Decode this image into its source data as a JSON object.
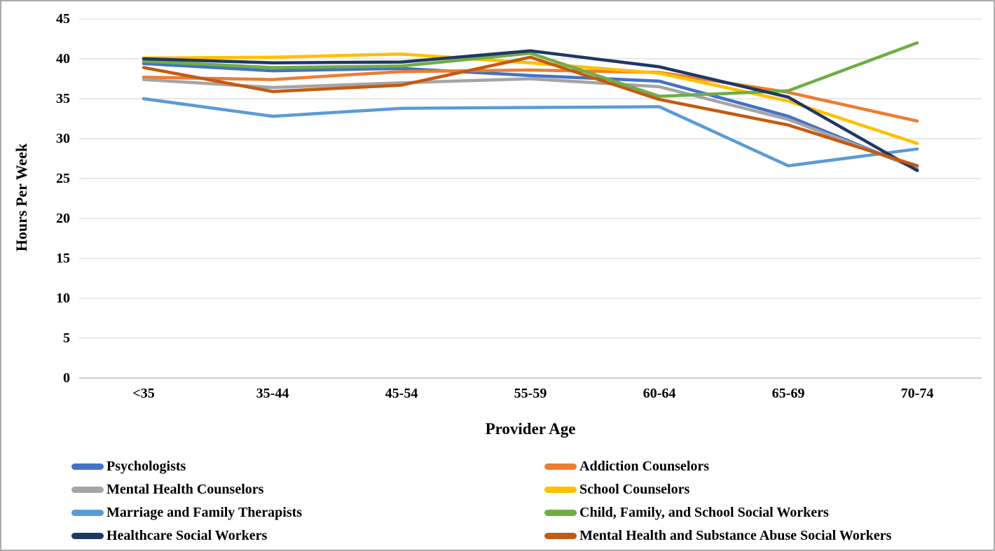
{
  "chart_data": {
    "type": "line",
    "title": "",
    "xlabel": "Provider Age",
    "ylabel": "Hours Per Week",
    "categories": [
      "<35",
      "35-44",
      "45-54",
      "55-59",
      "60-64",
      "65-69",
      "70-74"
    ],
    "ylim": [
      0,
      45
    ],
    "yticks": [
      0,
      5,
      10,
      15,
      20,
      25,
      30,
      35,
      40,
      45
    ],
    "grid": "horizontal",
    "legend_position": "bottom",
    "gridline_color": "#d9d9d9",
    "axis_line_color": "#bfbfbf",
    "series": [
      {
        "name": "Psychologists",
        "color": "#4472C4",
        "values": [
          39.4,
          38.5,
          38.8,
          37.9,
          37.2,
          32.8,
          26.2
        ]
      },
      {
        "name": "Addiction Counselors",
        "color": "#ED7D31",
        "values": [
          37.7,
          37.4,
          38.4,
          38.6,
          38.3,
          35.8,
          32.2
        ]
      },
      {
        "name": "Mental Health Counselors",
        "color": "#A5A5A5",
        "values": [
          37.4,
          36.4,
          37.0,
          37.5,
          36.5,
          32.4,
          26.3
        ]
      },
      {
        "name": "School Counselors",
        "color": "#FFC000",
        "values": [
          40.1,
          40.2,
          40.6,
          39.5,
          38.2,
          34.7,
          29.4
        ]
      },
      {
        "name": "Marriage and Family Therapists",
        "color": "#5B9BD5",
        "values": [
          35.0,
          32.8,
          33.8,
          33.9,
          34.0,
          26.6,
          28.7
        ]
      },
      {
        "name": "Child, Family, and School Social Workers",
        "color": "#70AD47",
        "values": [
          39.7,
          38.9,
          39.1,
          40.7,
          35.3,
          36.0,
          42.0
        ]
      },
      {
        "name": "Healthcare Social Workers",
        "color": "#1F3864",
        "values": [
          40.0,
          39.5,
          39.6,
          41.0,
          39.0,
          35.2,
          26.0
        ]
      },
      {
        "name": "Mental Health and Substance Abuse Social Workers",
        "color": "#C55A11",
        "values": [
          38.9,
          35.9,
          36.7,
          40.2,
          34.9,
          31.7,
          26.6
        ]
      }
    ],
    "legend_columns": [
      [
        "Psychologists",
        "Mental Health Counselors",
        "Marriage and Family Therapists",
        "Healthcare Social Workers"
      ],
      [
        "Addiction Counselors",
        "School Counselors",
        "Child, Family, and School Social Workers",
        "Mental Health and Substance Abuse Social Workers"
      ]
    ]
  }
}
